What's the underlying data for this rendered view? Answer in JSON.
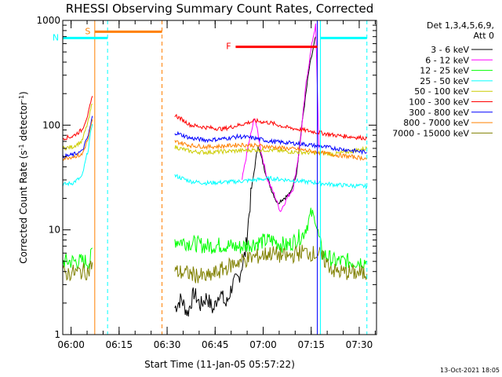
{
  "chart_data": {
    "type": "line",
    "title": "RHESSI Observing Summary Count Rates, Corrected",
    "xlabel": "Start Time (11-Jan-05 05:57:22)",
    "ylabel_prefix": "Corrected Count Rate (s",
    "ylabel_exp": "-1",
    "ylabel_mid": " detector",
    "ylabel_exp2": "-1",
    "ylabel_suffix": ")",
    "x_unit": "minutes since 05:57:22",
    "xlim": [
      0,
      98
    ],
    "ylim": [
      1,
      1000
    ],
    "yscale": "log",
    "x_ticks": [
      {
        "label": "06:00",
        "value": 2.6
      },
      {
        "label": "06:15",
        "value": 17.6
      },
      {
        "label": "06:30",
        "value": 32.6
      },
      {
        "label": "06:45",
        "value": 47.6
      },
      {
        "label": "07:00",
        "value": 62.6
      },
      {
        "label": "07:15",
        "value": 77.6
      },
      {
        "label": "07:30",
        "value": 92.6
      }
    ],
    "y_ticks": [
      {
        "label": "1",
        "value": 1
      },
      {
        "label": "10",
        "value": 10
      },
      {
        "label": "100",
        "value": 100
      },
      {
        "label": "1000",
        "value": 1000
      }
    ],
    "legend_header": [
      "Det 1,3,4,5,6,9,",
      "Att 0"
    ],
    "legend_position": "right",
    "series": [
      {
        "name": "3 - 6 keV",
        "color": "#000000",
        "x": [
          35,
          37,
          39,
          41,
          43,
          45,
          47,
          49,
          51,
          53,
          55,
          57,
          59,
          61,
          63,
          65,
          67,
          69,
          71,
          73,
          75,
          77,
          79
        ],
        "y": [
          1.8,
          2.2,
          1.6,
          2.5,
          1.9,
          2.3,
          1.7,
          2.6,
          1.9,
          3,
          3.5,
          6,
          25,
          65,
          38,
          25,
          18,
          20,
          22,
          35,
          120,
          350,
          700
        ]
      },
      {
        "name": "6 - 12 keV",
        "color": "#ff00ff",
        "x": [
          56,
          58,
          60,
          62,
          64,
          66,
          68,
          70,
          72,
          74,
          76,
          78,
          79,
          80
        ],
        "y": [
          30,
          65,
          120,
          55,
          30,
          22,
          15,
          20,
          25,
          60,
          250,
          650,
          900,
          60
        ]
      },
      {
        "name": "12 - 25 keV",
        "color": "#00ff00",
        "x": [
          0,
          3,
          6,
          8.5,
          9.5,
          35,
          40,
          45,
          50,
          55,
          60,
          65,
          70,
          75,
          78,
          79.5,
          81,
          85,
          95
        ],
        "y": [
          5,
          5,
          5,
          5,
          7,
          8,
          7.5,
          7,
          7.2,
          6.8,
          7.5,
          8,
          7,
          9,
          15,
          10,
          6,
          5,
          5
        ]
      },
      {
        "name": "25 - 50 keV",
        "color": "#00ffff",
        "x": [
          0,
          3,
          6,
          8,
          9.5,
          35,
          40,
          45,
          50,
          55,
          60,
          65,
          70,
          75,
          80,
          85,
          95
        ],
        "y": [
          27,
          28,
          32,
          60,
          120,
          33,
          29,
          28,
          28.5,
          29,
          30,
          31,
          30,
          29,
          28,
          27,
          26
        ]
      },
      {
        "name": "50 - 100 keV",
        "color": "#cccc00",
        "x": [
          0,
          3,
          6,
          8,
          9.5,
          35,
          40,
          45,
          50,
          55,
          60,
          65,
          70,
          75,
          80,
          85,
          95
        ],
        "y": [
          60,
          62,
          70,
          110,
          180,
          62,
          56,
          55,
          56,
          57,
          58,
          58,
          56,
          55,
          54,
          53,
          60
        ]
      },
      {
        "name": "100 - 300 keV",
        "color": "#ff0000",
        "x": [
          0,
          3,
          6,
          8,
          9.5,
          35,
          40,
          45,
          50,
          55,
          60,
          65,
          70,
          75,
          80,
          85,
          95
        ],
        "y": [
          75,
          78,
          90,
          130,
          200,
          125,
          100,
          95,
          92,
          100,
          110,
          105,
          95,
          90,
          85,
          80,
          75
        ]
      },
      {
        "name": "300 - 800 keV",
        "color": "#0000ff",
        "x": [
          0,
          3,
          6,
          8,
          9.5,
          35,
          40,
          45,
          50,
          55,
          60,
          65,
          70,
          75,
          80,
          85,
          95
        ],
        "y": [
          50,
          52,
          56,
          80,
          130,
          85,
          75,
          72,
          74,
          78,
          75,
          70,
          68,
          66,
          63,
          60,
          55
        ]
      },
      {
        "name": "800 - 7000 keV",
        "color": "#ff8000",
        "x": [
          0,
          3,
          6,
          8,
          9.5,
          35,
          40,
          45,
          50,
          55,
          60,
          65,
          70,
          75,
          80,
          85,
          95
        ],
        "y": [
          48,
          50,
          52,
          75,
          120,
          70,
          64,
          62,
          63,
          65,
          64,
          62,
          60,
          58,
          55,
          52,
          48
        ]
      },
      {
        "name": "7000 - 15000 keV",
        "color": "#808000",
        "x": [
          0,
          3,
          6,
          8,
          9.5,
          35,
          40,
          45,
          50,
          55,
          60,
          65,
          70,
          75,
          80,
          85,
          95
        ],
        "y": [
          3.8,
          3.9,
          4,
          4,
          5,
          4,
          3.8,
          3.5,
          4.2,
          5,
          5.5,
          6,
          5.5,
          6.2,
          5.8,
          4,
          3.8
        ]
      }
    ],
    "flag_bars": [
      {
        "label": "S",
        "color": "#ff8000",
        "x_start": 10,
        "x_end": 31,
        "y": 780
      },
      {
        "label": "N",
        "color": "#00ffff",
        "x_start": 0,
        "x_end": 14,
        "y": 680
      },
      {
        "label": "F",
        "color": "#ff0000",
        "x_start": 54,
        "x_end": 79.5,
        "y": 560
      },
      {
        "label": "",
        "color": "#00ffff",
        "x_start": 80.5,
        "x_end": 95,
        "y": 680
      }
    ],
    "vertical_lines": [
      {
        "x": 0,
        "color": "#00ffff",
        "dashed": false
      },
      {
        "x": 10,
        "color": "#ff8000",
        "dashed": false
      },
      {
        "x": 14,
        "color": "#00ffff",
        "dashed": true
      },
      {
        "x": 31,
        "color": "#ff8000",
        "dashed": true
      },
      {
        "x": 79.5,
        "color": "#0000ff",
        "dashed": false
      },
      {
        "x": 80.5,
        "color": "#00ffff",
        "dashed": false
      },
      {
        "x": 95,
        "color": "#00ffff",
        "dashed": true
      }
    ]
  },
  "footer": {
    "timestamp": "13-Oct-2021 18:05"
  }
}
